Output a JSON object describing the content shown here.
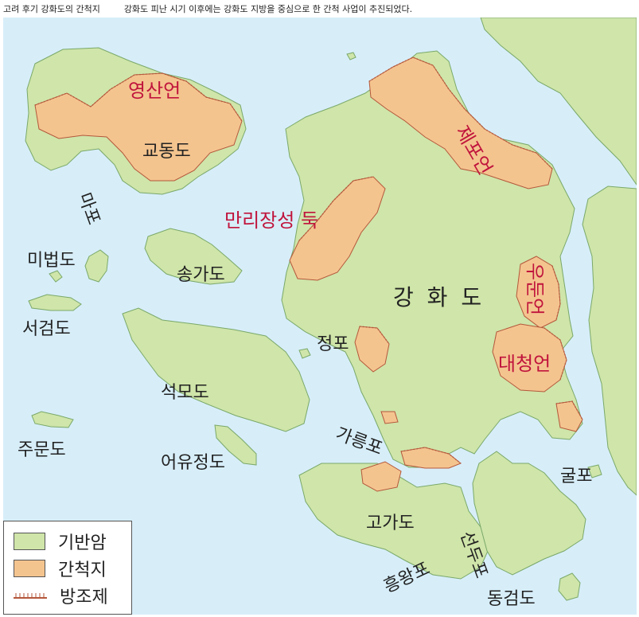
{
  "caption": {
    "title": "고려 후기 강화도의 간척지",
    "description": "강화도 피난 시기 이후에는 강화도 지방을 중심으로 한 간척 사업이 추진되었다."
  },
  "colors": {
    "sea": "#d7eef9",
    "bedrock": "#cfe5a9",
    "reclaimed": "#f4c48f",
    "levee": "#b4573b",
    "outline": "#7aa86a",
    "label": "#222222",
    "levee_label": "#c0143c"
  },
  "map": {
    "islands": {
      "ganghwa": "강 화 도",
      "gyodong": "교동도",
      "songga": "송가도",
      "mibeop": "미법도",
      "seogeom": "서검도",
      "seongmo": "석모도",
      "jumun": "주문도",
      "eoyujeong": "어유정도",
      "goga": "고가도",
      "donggeom": "동검도"
    },
    "places": {
      "mapo": "마포",
      "jeongpo": "정포",
      "gareungpo": "가릉포",
      "gulpo": "굴포",
      "heungwangpo": "흥왕포",
      "seondupo": "선두포"
    },
    "levees": {
      "yeongsan": "영산언",
      "jesepo": "제포언",
      "manrijangseong": "만리장성 둑",
      "udu": "우둔언",
      "daecheong": "대청언"
    }
  },
  "legend": {
    "bedrock": "기반암",
    "reclaimed": "간척지",
    "levee": "방조제"
  }
}
